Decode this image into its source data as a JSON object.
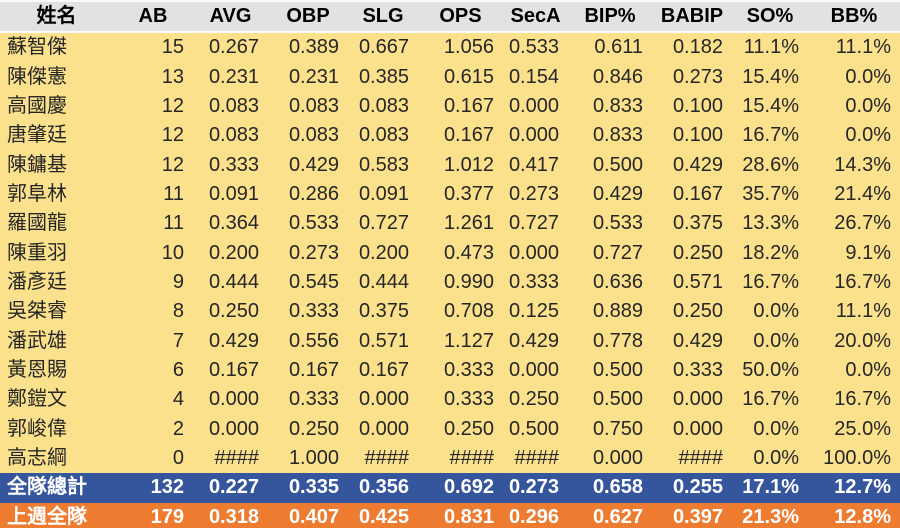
{
  "colors": {
    "table_body_bg": "#FBE18C",
    "header_bg": "#E2E2E2",
    "header_divider": "#FAFAFA",
    "header_text": "#000000",
    "body_text": "#262626",
    "team_total_bg": "#35559D",
    "last_week_bg": "#ED7C31",
    "summary_text": "#FFFFFF"
  },
  "chart_data": {
    "type": "table",
    "columns": [
      "姓名",
      "AB",
      "AVG",
      "OBP",
      "SLG",
      "OPS",
      "SecA",
      "BIP%",
      "BABIP",
      "SO%",
      "BB%"
    ],
    "rows": [
      [
        "蘇智傑",
        "15",
        "0.267",
        "0.389",
        "0.667",
        "1.056",
        "0.533",
        "0.611",
        "0.182",
        "11.1%",
        "11.1%"
      ],
      [
        "陳傑憲",
        "13",
        "0.231",
        "0.231",
        "0.385",
        "0.615",
        "0.154",
        "0.846",
        "0.273",
        "15.4%",
        "0.0%"
      ],
      [
        "高國慶",
        "12",
        "0.083",
        "0.083",
        "0.083",
        "0.167",
        "0.000",
        "0.833",
        "0.100",
        "15.4%",
        "0.0%"
      ],
      [
        "唐肇廷",
        "12",
        "0.083",
        "0.083",
        "0.083",
        "0.167",
        "0.000",
        "0.833",
        "0.100",
        "16.7%",
        "0.0%"
      ],
      [
        "陳鏞基",
        "12",
        "0.333",
        "0.429",
        "0.583",
        "1.012",
        "0.417",
        "0.500",
        "0.429",
        "28.6%",
        "14.3%"
      ],
      [
        "郭阜林",
        "11",
        "0.091",
        "0.286",
        "0.091",
        "0.377",
        "0.273",
        "0.429",
        "0.167",
        "35.7%",
        "21.4%"
      ],
      [
        "羅國龍",
        "11",
        "0.364",
        "0.533",
        "0.727",
        "1.261",
        "0.727",
        "0.533",
        "0.375",
        "13.3%",
        "26.7%"
      ],
      [
        "陳重羽",
        "10",
        "0.200",
        "0.273",
        "0.200",
        "0.473",
        "0.000",
        "0.727",
        "0.250",
        "18.2%",
        "9.1%"
      ],
      [
        "潘彥廷",
        "9",
        "0.444",
        "0.545",
        "0.444",
        "0.990",
        "0.333",
        "0.636",
        "0.571",
        "16.7%",
        "16.7%"
      ],
      [
        "吳桀睿",
        "8",
        "0.250",
        "0.333",
        "0.375",
        "0.708",
        "0.125",
        "0.889",
        "0.250",
        "0.0%",
        "11.1%"
      ],
      [
        "潘武雄",
        "7",
        "0.429",
        "0.556",
        "0.571",
        "1.127",
        "0.429",
        "0.778",
        "0.429",
        "0.0%",
        "20.0%"
      ],
      [
        "黃恩賜",
        "6",
        "0.167",
        "0.167",
        "0.167",
        "0.333",
        "0.000",
        "0.500",
        "0.333",
        "50.0%",
        "0.0%"
      ],
      [
        "鄭鎧文",
        "4",
        "0.000",
        "0.333",
        "0.000",
        "0.333",
        "0.250",
        "0.500",
        "0.000",
        "16.7%",
        "16.7%"
      ],
      [
        "郭峻偉",
        "2",
        "0.000",
        "0.250",
        "0.000",
        "0.250",
        "0.500",
        "0.750",
        "0.000",
        "0.0%",
        "25.0%"
      ],
      [
        "高志綱",
        "0",
        "####",
        "1.000",
        "####",
        "####",
        "####",
        "0.000",
        "####",
        "0.0%",
        "100.0%"
      ]
    ],
    "summary_rows": [
      {
        "kind": "team-total",
        "cells": [
          "全隊總計",
          "132",
          "0.227",
          "0.335",
          "0.356",
          "0.692",
          "0.273",
          "0.658",
          "0.255",
          "17.1%",
          "12.7%"
        ]
      },
      {
        "kind": "last-week-total",
        "cells": [
          "上週全隊",
          "179",
          "0.318",
          "0.407",
          "0.425",
          "0.831",
          "0.296",
          "0.627",
          "0.397",
          "21.3%",
          "12.8%"
        ]
      }
    ]
  }
}
